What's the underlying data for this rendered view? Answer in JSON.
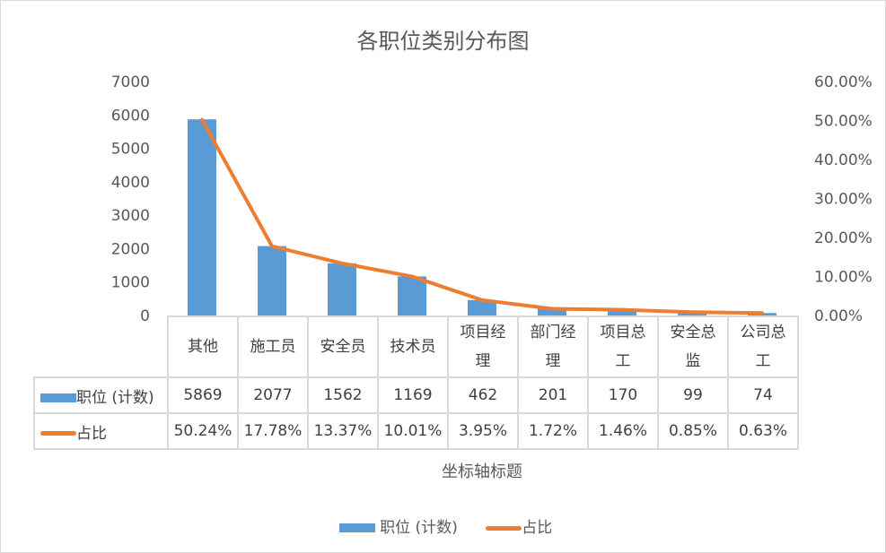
{
  "chart_data": {
    "type": "bar+line",
    "title": "各职位类别分布图",
    "categories": [
      "其他",
      "施工员",
      "安全员",
      "技术员",
      "项目经理",
      "部门经理",
      "项目总工",
      "安全总监",
      "公司总工"
    ],
    "series": [
      {
        "name": "职位 (计数)",
        "type": "bar",
        "axis": "left",
        "color": "#5b9bd5",
        "values": [
          5869,
          2077,
          1562,
          1169,
          462,
          201,
          170,
          99,
          74
        ],
        "labels": [
          "5869",
          "2077",
          "1562",
          "1169",
          "462",
          "201",
          "170",
          "99",
          "74"
        ]
      },
      {
        "name": "占比",
        "type": "line",
        "axis": "right",
        "color": "#ed7d31",
        "values": [
          50.24,
          17.78,
          13.37,
          10.01,
          3.95,
          1.72,
          1.46,
          0.85,
          0.63
        ],
        "labels": [
          "50.24%",
          "17.78%",
          "13.37%",
          "10.01%",
          "3.95%",
          "1.72%",
          "1.46%",
          "0.85%",
          "0.63%"
        ]
      }
    ],
    "ylim": [
      0,
      7000
    ],
    "y_ticks": [
      "0",
      "1000",
      "2000",
      "3000",
      "4000",
      "5000",
      "6000",
      "7000"
    ],
    "y2lim": [
      0,
      60
    ],
    "y2_ticks": [
      "0.00%",
      "10.00%",
      "20.00%",
      "30.00%",
      "40.00%",
      "50.00%",
      "60.00%"
    ],
    "xlabel": "坐标轴标题",
    "legend_position": "bottom",
    "grid": false
  }
}
